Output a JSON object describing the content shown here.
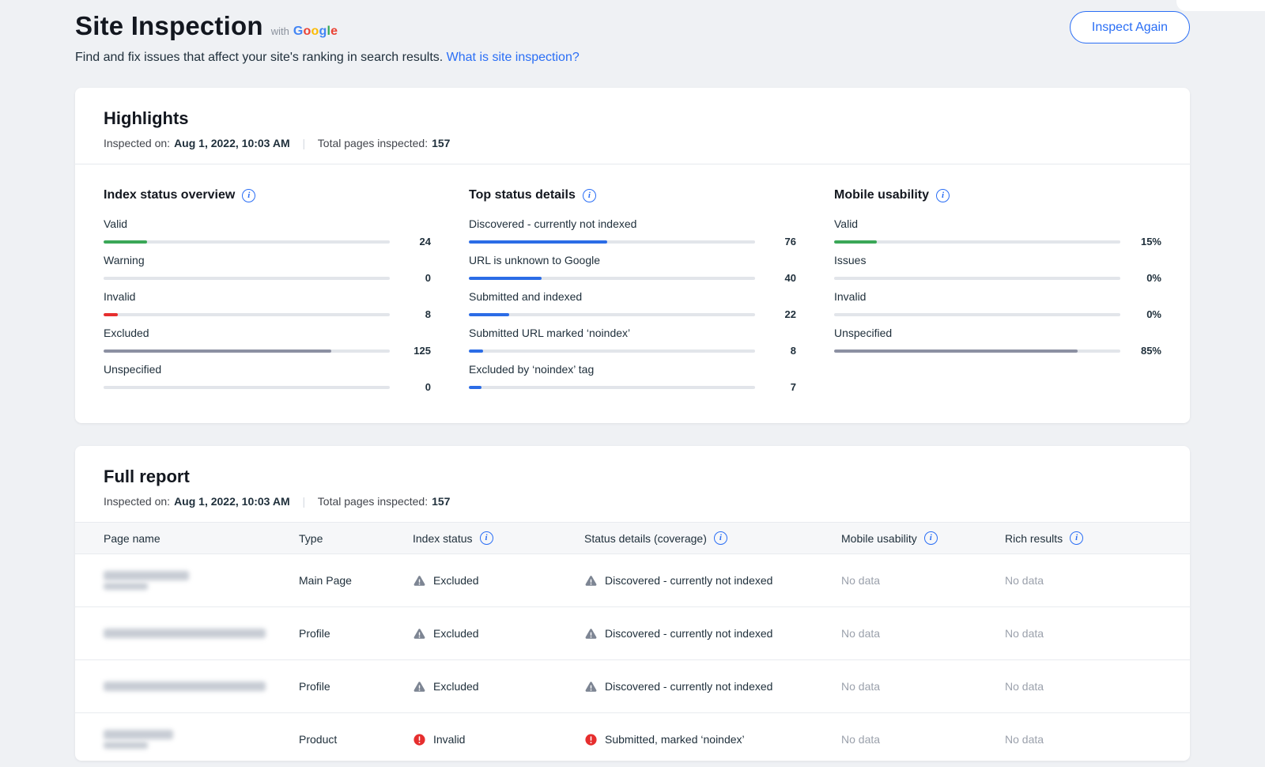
{
  "header": {
    "title": "Site Inspection",
    "with_label": "with",
    "brand": "Google",
    "subtitle": "Find and fix issues that affect your site's ranking in search results.",
    "link": "What is site inspection?",
    "button": "Inspect Again"
  },
  "colors": {
    "accent_blue": "#2a6ef5",
    "bar_blue": "#2b6ce6",
    "green": "#3aa757",
    "red": "#e62e2e",
    "gray_bar": "#8c90a2",
    "warning_icon": "#7d8593",
    "google": [
      "#4285F4",
      "#EA4335",
      "#FBBC05",
      "#4285F4",
      "#34A853",
      "#EA4335"
    ]
  },
  "highlights": {
    "title": "Highlights",
    "inspected_label": "Inspected on:",
    "inspected_value": "Aug 1, 2022, 10:03 AM",
    "total_label": "Total pages inspected:",
    "total_value": "157",
    "columns": [
      {
        "title": "Index status overview",
        "metrics": [
          {
            "label": "Valid",
            "value": "24",
            "pct": 15.3,
            "color": "#3aa757"
          },
          {
            "label": "Warning",
            "value": "0",
            "pct": 0,
            "color": "#8c90a2"
          },
          {
            "label": "Invalid",
            "value": "8",
            "pct": 5.1,
            "color": "#e62e2e"
          },
          {
            "label": "Excluded",
            "value": "125",
            "pct": 79.6,
            "color": "#8c90a2"
          },
          {
            "label": "Unspecified",
            "value": "0",
            "pct": 0,
            "color": "#8c90a2"
          }
        ]
      },
      {
        "title": "Top status details",
        "metrics": [
          {
            "label": "Discovered - currently not indexed",
            "value": "76",
            "pct": 48.4,
            "color": "#2b6ce6"
          },
          {
            "label": "URL is unknown to Google",
            "value": "40",
            "pct": 25.5,
            "color": "#2b6ce6"
          },
          {
            "label": "Submitted and indexed",
            "value": "22",
            "pct": 14.0,
            "color": "#2b6ce6"
          },
          {
            "label": "Submitted URL marked ‘noindex’",
            "value": "8",
            "pct": 5.1,
            "color": "#2b6ce6"
          },
          {
            "label": "Excluded by ‘noindex’ tag",
            "value": "7",
            "pct": 4.5,
            "color": "#2b6ce6"
          }
        ]
      },
      {
        "title": "Mobile usability",
        "metrics": [
          {
            "label": "Valid",
            "value": "15%",
            "pct": 15,
            "color": "#3aa757"
          },
          {
            "label": "Issues",
            "value": "0%",
            "pct": 0,
            "color": "#e6a117"
          },
          {
            "label": "Invalid",
            "value": "0%",
            "pct": 0,
            "color": "#e62e2e"
          },
          {
            "label": "Unspecified",
            "value": "85%",
            "pct": 85,
            "color": "#8c90a2"
          }
        ]
      }
    ]
  },
  "report": {
    "title": "Full report",
    "inspected_label": "Inspected on:",
    "inspected_value": "Aug 1, 2022, 10:03 AM",
    "total_label": "Total pages inspected:",
    "total_value": "157",
    "columns": [
      {
        "label": "Page name",
        "info": false
      },
      {
        "label": "Type",
        "info": false
      },
      {
        "label": "Index status",
        "info": true
      },
      {
        "label": "Status details (coverage)",
        "info": true
      },
      {
        "label": "Mobile usability",
        "info": true
      },
      {
        "label": "Rich results",
        "info": true
      }
    ],
    "rows": [
      {
        "name_redacted": true,
        "blur_lines": [
          108,
          56
        ],
        "type": "Main Page",
        "index_status": {
          "icon": "warning",
          "label": "Excluded"
        },
        "coverage": {
          "icon": "warning",
          "label": "Discovered - currently not indexed"
        },
        "mobile": "No data",
        "rich": "No data"
      },
      {
        "name_redacted": true,
        "blur_lines": [
          205
        ],
        "type": "Profile",
        "index_status": {
          "icon": "warning",
          "label": "Excluded"
        },
        "coverage": {
          "icon": "warning",
          "label": "Discovered - currently not indexed"
        },
        "mobile": "No data",
        "rich": "No data"
      },
      {
        "name_redacted": true,
        "blur_lines": [
          205
        ],
        "type": "Profile",
        "index_status": {
          "icon": "warning",
          "label": "Excluded"
        },
        "coverage": {
          "icon": "warning",
          "label": "Discovered - currently not indexed"
        },
        "mobile": "No data",
        "rich": "No data"
      },
      {
        "name_redacted": true,
        "blur_lines": [
          88,
          56
        ],
        "type": "Product",
        "index_status": {
          "icon": "error",
          "label": "Invalid"
        },
        "coverage": {
          "icon": "error",
          "label": "Submitted, marked ‘noindex’"
        },
        "mobile": "No data",
        "rich": "No data"
      }
    ]
  }
}
